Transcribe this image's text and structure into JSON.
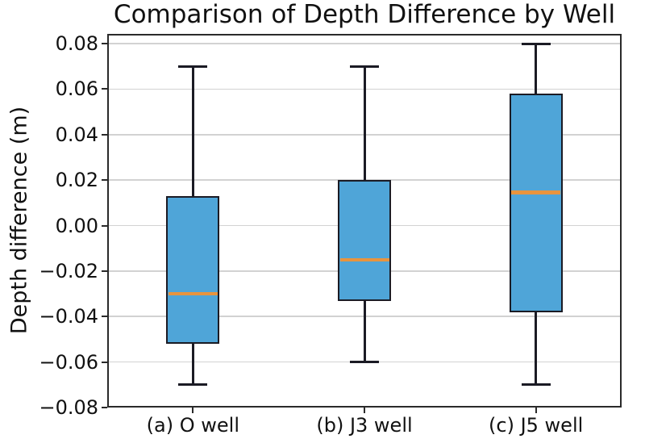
{
  "title": "Comparison of Depth Difference by Well",
  "y_axis_label": "Depth difference (m)",
  "chart_data": {
    "type": "boxplot",
    "title": "Comparison of Depth Difference by Well",
    "xlabel": "",
    "ylabel": "Depth difference (m)",
    "categories": [
      "(a) O well",
      "(b) J3 well",
      "(c) J5 well"
    ],
    "ylim": [
      -0.08,
      0.0843
    ],
    "yticks": [
      0.08,
      0.06,
      0.04,
      0.02,
      0.0,
      -0.02,
      -0.04,
      -0.06,
      -0.08
    ],
    "ytick_labels": [
      "0.08",
      "0.06",
      "0.04",
      "0.02",
      "0.00",
      "−0.02",
      "−0.04",
      "−0.06",
      "−0.08"
    ],
    "grid": true,
    "legend": false,
    "series": [
      {
        "name": "(a) O well",
        "whisker_low": -0.07,
        "q1": -0.052,
        "median": -0.03,
        "q3": 0.013,
        "whisker_high": 0.07
      },
      {
        "name": "(b) J3 well",
        "whisker_low": -0.06,
        "q1": -0.033,
        "median": -0.015,
        "q3": 0.02,
        "whisker_high": 0.07
      },
      {
        "name": "(c) J5 well",
        "whisker_low": -0.07,
        "q1": -0.038,
        "median": 0.0145,
        "q3": 0.058,
        "whisker_high": 0.08
      }
    ],
    "colors": {
      "box_fill": "#4fa5d8",
      "box_edge": "#1b1b24",
      "median": "#e8943e",
      "whisker": "#1b1b24",
      "grid": "#d2d2d2",
      "spine": "#2a2a2a",
      "text": "#111111",
      "background": "#ffffff"
    }
  }
}
